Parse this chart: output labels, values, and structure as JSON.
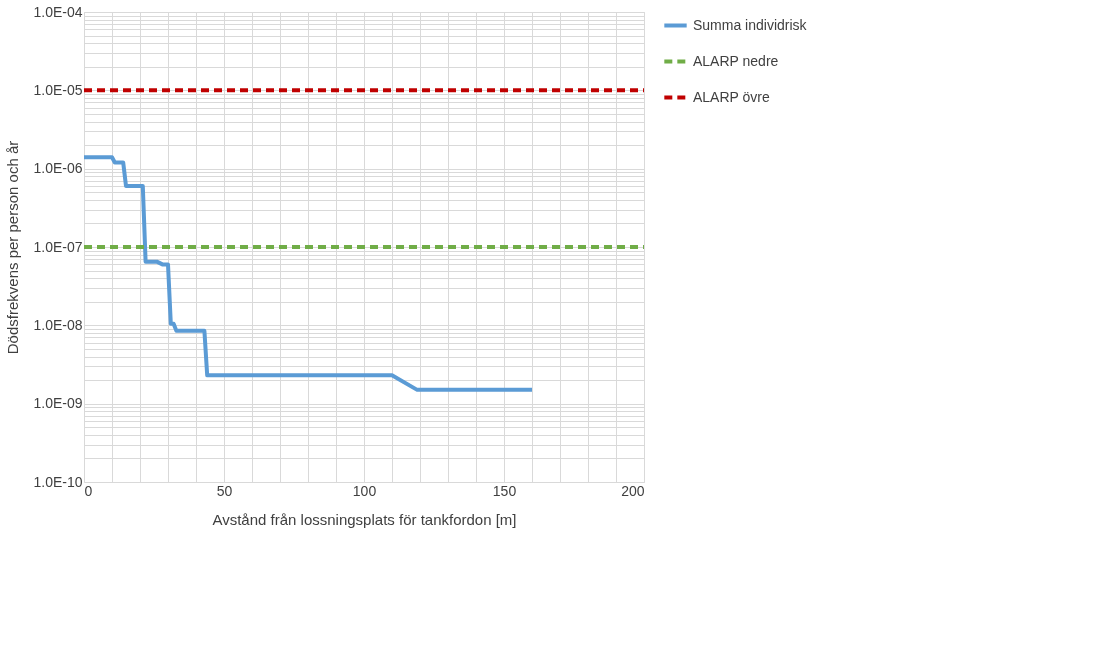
{
  "chart_data": {
    "type": "line",
    "xlabel": "Avstånd från lossningsplats för tankfordon [m]",
    "ylabel": "Dödsfrekvens per person och år",
    "log": "y",
    "xlim": [
      0,
      200
    ],
    "ylim": [
      1e-10,
      0.0001
    ],
    "xticks": [
      0,
      {
        "value": 10,
        "label": null
      },
      {
        "value": 20,
        "label": null
      },
      {
        "value": 30,
        "label": null
      },
      {
        "value": 40,
        "label": null
      },
      50,
      {
        "value": 60,
        "label": null
      },
      {
        "value": 70,
        "label": null
      },
      {
        "value": 80,
        "label": null
      },
      {
        "value": 90,
        "label": null
      },
      100,
      {
        "value": 110,
        "label": null
      },
      {
        "value": 120,
        "label": null
      },
      {
        "value": 130,
        "label": null
      },
      {
        "value": 140,
        "label": null
      },
      150,
      {
        "value": 160,
        "label": null
      },
      {
        "value": 170,
        "label": null
      },
      {
        "value": 180,
        "label": null
      },
      {
        "value": 190,
        "label": null
      },
      200
    ],
    "yticks": [
      {
        "value": 1e-10,
        "label": "1.0E-10"
      },
      {
        "value": 2e-10,
        "label": null
      },
      {
        "value": 3e-10,
        "label": null
      },
      {
        "value": 4e-10,
        "label": null
      },
      {
        "value": 5e-10,
        "label": null
      },
      {
        "value": 6e-10,
        "label": null
      },
      {
        "value": 7e-10,
        "label": null
      },
      {
        "value": 8e-10,
        "label": null
      },
      {
        "value": 9e-10,
        "label": null
      },
      {
        "value": 1e-09,
        "label": "1.0E-09"
      },
      {
        "value": 2e-09,
        "label": null
      },
      {
        "value": 3e-09,
        "label": null
      },
      {
        "value": 4e-09,
        "label": null
      },
      {
        "value": 5e-09,
        "label": null
      },
      {
        "value": 6e-09,
        "label": null
      },
      {
        "value": 7e-09,
        "label": null
      },
      {
        "value": 8e-09,
        "label": null
      },
      {
        "value": 9e-09,
        "label": null
      },
      {
        "value": 1e-08,
        "label": "1.0E-08"
      },
      {
        "value": 2e-08,
        "label": null
      },
      {
        "value": 3e-08,
        "label": null
      },
      {
        "value": 4e-08,
        "label": null
      },
      {
        "value": 5e-08,
        "label": null
      },
      {
        "value": 6e-08,
        "label": null
      },
      {
        "value": 7e-08,
        "label": null
      },
      {
        "value": 8e-08,
        "label": null
      },
      {
        "value": 9e-08,
        "label": null
      },
      {
        "value": 1e-07,
        "label": "1.0E-07"
      },
      {
        "value": 2e-07,
        "label": null
      },
      {
        "value": 3e-07,
        "label": null
      },
      {
        "value": 4e-07,
        "label": null
      },
      {
        "value": 5e-07,
        "label": null
      },
      {
        "value": 6e-07,
        "label": null
      },
      {
        "value": 7e-07,
        "label": null
      },
      {
        "value": 8e-07,
        "label": null
      },
      {
        "value": 9e-07,
        "label": null
      },
      {
        "value": 1e-06,
        "label": "1.0E-06"
      },
      {
        "value": 2e-06,
        "label": null
      },
      {
        "value": 3e-06,
        "label": null
      },
      {
        "value": 4e-06,
        "label": null
      },
      {
        "value": 5e-06,
        "label": null
      },
      {
        "value": 6e-06,
        "label": null
      },
      {
        "value": 7e-06,
        "label": null
      },
      {
        "value": 8e-06,
        "label": null
      },
      {
        "value": 9e-06,
        "label": null
      },
      {
        "value": 1e-05,
        "label": "1.0E-05"
      },
      {
        "value": 2e-05,
        "label": null
      },
      {
        "value": 3e-05,
        "label": null
      },
      {
        "value": 4e-05,
        "label": null
      },
      {
        "value": 5e-05,
        "label": null
      },
      {
        "value": 6e-05,
        "label": null
      },
      {
        "value": 7e-05,
        "label": null
      },
      {
        "value": 8e-05,
        "label": null
      },
      {
        "value": 9e-05,
        "label": null
      },
      {
        "value": 0.0001,
        "label": "1.0E-04"
      }
    ],
    "grid": true,
    "legend": "right",
    "series": [
      {
        "name": "Summa individrisk",
        "color": "#5b9bd5",
        "line_style": "solid",
        "x": [
          0,
          10,
          11,
          14,
          15,
          21,
          22,
          26,
          28,
          30,
          31,
          32,
          33,
          43,
          44,
          110,
          119,
          160
        ],
        "values": [
          1.4e-06,
          1.4e-06,
          1.2e-06,
          1.2e-06,
          6e-07,
          6e-07,
          6.5e-08,
          6.5e-08,
          6e-08,
          6e-08,
          1.05e-08,
          1.05e-08,
          8.5e-09,
          8.5e-09,
          2.3e-09,
          2.3e-09,
          1.5e-09,
          1.5e-09
        ]
      },
      {
        "name": "ALARP nedre",
        "color": "#70ad47",
        "line_style": "dashed",
        "x": [
          0,
          200
        ],
        "values": [
          1e-07,
          1e-07
        ]
      },
      {
        "name": "ALARP övre",
        "color": "#c00000",
        "line_style": "dashed",
        "x": [
          0,
          200
        ],
        "values": [
          1e-05,
          1e-05
        ]
      }
    ]
  }
}
